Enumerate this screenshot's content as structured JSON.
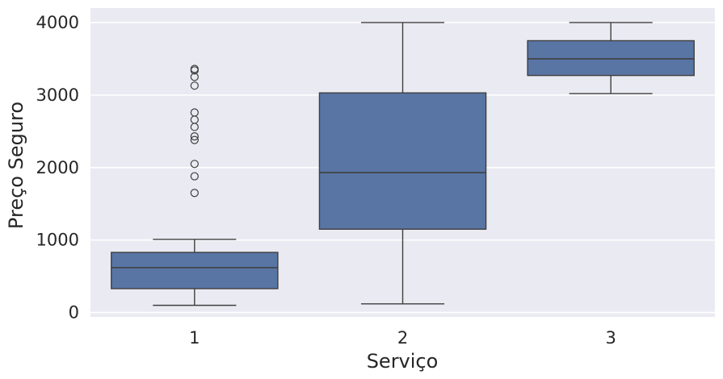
{
  "chart_data": {
    "type": "boxplot",
    "xlabel": "Serviço",
    "ylabel": "Preço Seguro",
    "categories": [
      "1",
      "2",
      "3"
    ],
    "ylim": [
      -60,
      4200
    ],
    "yticks": [
      0,
      1000,
      2000,
      3000,
      4000
    ],
    "grid": true,
    "background": "#eaeaf2",
    "box_color": "#5875a4",
    "line_color": "#3f3f3f",
    "boxes": [
      {
        "category": "1",
        "whisker_low": 100,
        "q1": 330,
        "median": 620,
        "q3": 830,
        "whisker_high": 1010,
        "outliers": [
          1650,
          1880,
          2050,
          2380,
          2430,
          2560,
          2660,
          2760,
          3130,
          3250,
          3340,
          3360
        ]
      },
      {
        "category": "2",
        "whisker_low": 120,
        "q1": 1150,
        "median": 1930,
        "q3": 3030,
        "whisker_high": 4000,
        "outliers": []
      },
      {
        "category": "3",
        "whisker_low": 3020,
        "q1": 3270,
        "median": 3500,
        "q3": 3750,
        "whisker_high": 4000,
        "outliers": []
      }
    ]
  }
}
